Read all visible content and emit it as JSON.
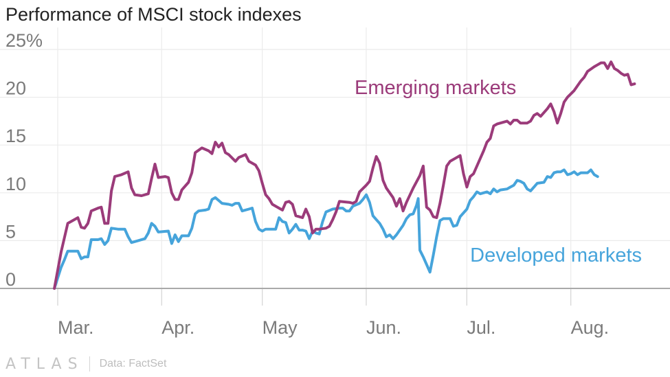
{
  "chart_data": {
    "type": "line",
    "title": "Performance of MSCI stock indexes",
    "xlabel": "",
    "ylabel": "",
    "ylim": [
      0,
      25
    ],
    "yticks": [
      0,
      5,
      10,
      15,
      20,
      25
    ],
    "ytick_labels": [
      "0",
      "5",
      "10",
      "15",
      "20",
      "25%"
    ],
    "xlim": [
      0,
      178
    ],
    "xticks": [
      {
        "label": "Mar.",
        "x": 0
      },
      {
        "label": "Apr.",
        "x": 31
      },
      {
        "label": "May",
        "x": 61
      },
      {
        "label": "Jun.",
        "x": 92
      },
      {
        "label": "Jul.",
        "x": 122
      },
      {
        "label": "Aug.",
        "x": 153
      }
    ],
    "grid": true,
    "series": [
      {
        "name": "Emerging markets",
        "color": "#9b3b7a",
        "points": [
          [
            -1,
            0
          ],
          [
            1,
            3.8
          ],
          [
            3,
            6.8
          ],
          [
            5,
            7.2
          ],
          [
            6,
            7.4
          ],
          [
            7,
            6.4
          ],
          [
            8,
            6.3
          ],
          [
            9,
            6.8
          ],
          [
            10,
            8.1
          ],
          [
            12,
            8.4
          ],
          [
            13,
            8.5
          ],
          [
            14,
            6.8
          ],
          [
            15,
            6.8
          ],
          [
            16,
            10.2
          ],
          [
            17,
            11.7
          ],
          [
            19,
            11.9
          ],
          [
            21,
            12.2
          ],
          [
            22,
            10.5
          ],
          [
            23,
            9.8
          ],
          [
            25,
            9.7
          ],
          [
            27,
            9.9
          ],
          [
            28,
            11.5
          ],
          [
            29,
            13.0
          ],
          [
            30,
            11.6
          ],
          [
            32,
            11.7
          ],
          [
            33,
            11.6
          ],
          [
            34,
            10.0
          ],
          [
            35,
            9.3
          ],
          [
            36,
            9.3
          ],
          [
            37,
            10.3
          ],
          [
            39,
            11.1
          ],
          [
            40,
            12.1
          ],
          [
            41,
            14.2
          ],
          [
            43,
            14.7
          ],
          [
            45,
            14.4
          ],
          [
            46,
            14.1
          ],
          [
            47,
            15.3
          ],
          [
            48,
            14.8
          ],
          [
            49,
            15.2
          ],
          [
            50,
            14.2
          ],
          [
            51,
            14.0
          ],
          [
            53,
            13.3
          ],
          [
            54,
            13.7
          ],
          [
            56,
            14.0
          ],
          [
            57,
            13.3
          ],
          [
            59,
            12.9
          ],
          [
            60,
            12.3
          ],
          [
            61,
            11.0
          ],
          [
            62,
            9.8
          ],
          [
            63,
            9.4
          ],
          [
            64,
            8.8
          ],
          [
            66,
            8.4
          ],
          [
            67,
            8.2
          ],
          [
            68,
            9.0
          ],
          [
            69,
            9.1
          ],
          [
            70,
            8.8
          ],
          [
            71,
            7.6
          ],
          [
            72,
            7.5
          ],
          [
            73,
            7.4
          ],
          [
            74,
            8.3
          ],
          [
            75,
            7.5
          ],
          [
            76,
            5.8
          ],
          [
            77,
            6.2
          ],
          [
            78,
            6.2
          ],
          [
            80,
            6.3
          ],
          [
            81,
            6.5
          ],
          [
            82,
            7.2
          ],
          [
            83,
            8.0
          ],
          [
            84,
            9.1
          ],
          [
            87,
            9.0
          ],
          [
            88,
            8.9
          ],
          [
            89,
            9.1
          ],
          [
            90,
            10.1
          ],
          [
            92,
            10.8
          ],
          [
            93,
            11.2
          ],
          [
            94,
            12.6
          ],
          [
            95,
            13.8
          ],
          [
            96,
            13.1
          ],
          [
            97,
            11.3
          ],
          [
            98,
            10.5
          ],
          [
            100,
            9.5
          ],
          [
            101,
            8.6
          ],
          [
            102,
            9.4
          ],
          [
            103,
            8.1
          ],
          [
            104,
            9.0
          ],
          [
            106,
            10.5
          ],
          [
            108,
            11.8
          ],
          [
            109,
            12.8
          ],
          [
            110,
            8.5
          ],
          [
            111,
            8.2
          ],
          [
            112,
            7.5
          ],
          [
            113,
            7.4
          ],
          [
            114,
            8.9
          ],
          [
            115,
            10.8
          ],
          [
            116,
            12.8
          ],
          [
            117,
            13.3
          ],
          [
            119,
            13.7
          ],
          [
            120,
            13.9
          ],
          [
            121,
            12.0
          ],
          [
            122,
            10.6
          ],
          [
            123,
            11.7
          ],
          [
            124,
            12.0
          ],
          [
            127,
            14.4
          ],
          [
            128,
            15.3
          ],
          [
            129,
            15.7
          ],
          [
            130,
            17.0
          ],
          [
            131,
            17.2
          ],
          [
            132,
            17.3
          ],
          [
            134,
            17.5
          ],
          [
            135,
            17.2
          ],
          [
            136,
            17.6
          ],
          [
            137,
            17.6
          ],
          [
            138,
            17.3
          ],
          [
            140,
            17.3
          ],
          [
            141,
            17.5
          ],
          [
            142,
            18.1
          ],
          [
            143,
            18.3
          ],
          [
            144,
            18.0
          ],
          [
            146,
            18.8
          ],
          [
            147,
            19.3
          ],
          [
            148,
            18.5
          ],
          [
            149,
            17.3
          ],
          [
            150,
            18.3
          ],
          [
            151,
            19.5
          ],
          [
            152,
            20.0
          ],
          [
            154,
            20.7
          ],
          [
            155,
            21.2
          ],
          [
            156,
            21.7
          ],
          [
            157,
            22.1
          ],
          [
            158,
            22.7
          ],
          [
            160,
            23.2
          ],
          [
            161,
            23.4
          ],
          [
            162,
            23.6
          ],
          [
            163,
            23.6
          ],
          [
            164,
            23.0
          ],
          [
            165,
            23.7
          ],
          [
            166,
            23.0
          ],
          [
            167,
            22.8
          ],
          [
            168,
            22.5
          ],
          [
            169,
            22.3
          ],
          [
            170,
            22.4
          ],
          [
            171,
            21.3
          ],
          [
            172,
            21.4
          ]
        ]
      },
      {
        "name": "Developed markets",
        "color": "#46a4db",
        "points": [
          [
            -1,
            0
          ],
          [
            1,
            2.2
          ],
          [
            2,
            3.0
          ],
          [
            3,
            3.9
          ],
          [
            5,
            3.9
          ],
          [
            6,
            3.9
          ],
          [
            7,
            3.1
          ],
          [
            8,
            3.3
          ],
          [
            9,
            3.3
          ],
          [
            10,
            5.1
          ],
          [
            12,
            5.1
          ],
          [
            13,
            5.2
          ],
          [
            14,
            4.6
          ],
          [
            15,
            5.0
          ],
          [
            16,
            6.3
          ],
          [
            18,
            6.2
          ],
          [
            20,
            6.2
          ],
          [
            21,
            5.4
          ],
          [
            22,
            4.8
          ],
          [
            24,
            5.0
          ],
          [
            26,
            5.2
          ],
          [
            27,
            5.8
          ],
          [
            28,
            6.8
          ],
          [
            29,
            6.5
          ],
          [
            30,
            5.9
          ],
          [
            33,
            6.0
          ],
          [
            34,
            4.7
          ],
          [
            35,
            5.6
          ],
          [
            36,
            4.9
          ],
          [
            37,
            5.5
          ],
          [
            39,
            5.5
          ],
          [
            40,
            6.3
          ],
          [
            41,
            7.8
          ],
          [
            42,
            8.1
          ],
          [
            44,
            8.2
          ],
          [
            45,
            8.3
          ],
          [
            46,
            9.3
          ],
          [
            47,
            9.5
          ],
          [
            48,
            9.2
          ],
          [
            49,
            8.9
          ],
          [
            51,
            8.8
          ],
          [
            52,
            8.7
          ],
          [
            53,
            8.9
          ],
          [
            54,
            8.9
          ],
          [
            55,
            8.1
          ],
          [
            57,
            8.3
          ],
          [
            58,
            8.4
          ],
          [
            59,
            7.0
          ],
          [
            60,
            6.2
          ],
          [
            61,
            6.0
          ],
          [
            62,
            6.2
          ],
          [
            64,
            6.2
          ],
          [
            65,
            6.2
          ],
          [
            66,
            7.4
          ],
          [
            67,
            7.0
          ],
          [
            68,
            6.9
          ],
          [
            69,
            5.8
          ],
          [
            70,
            6.2
          ],
          [
            71,
            6.7
          ],
          [
            72,
            6.1
          ],
          [
            73,
            6.1
          ],
          [
            74,
            6.0
          ],
          [
            75,
            5.2
          ],
          [
            76,
            6.0
          ],
          [
            77,
            5.8
          ],
          [
            78,
            5.7
          ],
          [
            79,
            7.0
          ],
          [
            80,
            8.0
          ],
          [
            82,
            8.3
          ],
          [
            84,
            8.4
          ],
          [
            85,
            8.4
          ],
          [
            86,
            8.1
          ],
          [
            87,
            8.1
          ],
          [
            88,
            8.6
          ],
          [
            90,
            8.9
          ],
          [
            91,
            9.3
          ],
          [
            92,
            9.8
          ],
          [
            93,
            9.0
          ],
          [
            94,
            7.6
          ],
          [
            95,
            7.2
          ],
          [
            96,
            6.8
          ],
          [
            97,
            6.2
          ],
          [
            98,
            5.4
          ],
          [
            99,
            5.6
          ],
          [
            100,
            5.2
          ],
          [
            101,
            5.6
          ],
          [
            103,
            6.6
          ],
          [
            104,
            7.3
          ],
          [
            105,
            7.7
          ],
          [
            106,
            7.8
          ],
          [
            107,
            8.7
          ],
          [
            107.5,
            9.4
          ],
          [
            108,
            4.0
          ],
          [
            109,
            3.3
          ],
          [
            110,
            2.5
          ],
          [
            111,
            1.7
          ],
          [
            112,
            3.5
          ],
          [
            113,
            5.4
          ],
          [
            114,
            7.1
          ],
          [
            115,
            7.3
          ],
          [
            117,
            7.3
          ],
          [
            118,
            6.5
          ],
          [
            119,
            6.6
          ],
          [
            120,
            7.5
          ],
          [
            122,
            8.3
          ],
          [
            123,
            9.2
          ],
          [
            124,
            9.6
          ],
          [
            125,
            10.1
          ],
          [
            126,
            9.9
          ],
          [
            128,
            10.1
          ],
          [
            129,
            9.9
          ],
          [
            130,
            10.4
          ],
          [
            131,
            10.1
          ],
          [
            132,
            10.3
          ],
          [
            134,
            10.4
          ],
          [
            135,
            10.6
          ],
          [
            136,
            10.8
          ],
          [
            137,
            11.3
          ],
          [
            138,
            11.2
          ],
          [
            139,
            11.0
          ],
          [
            140,
            10.4
          ],
          [
            141,
            10.2
          ],
          [
            142,
            10.6
          ],
          [
            143,
            11.0
          ],
          [
            145,
            11.1
          ],
          [
            146,
            11.7
          ],
          [
            147,
            11.6
          ],
          [
            148,
            12.1
          ],
          [
            149,
            12.2
          ],
          [
            150,
            12.2
          ],
          [
            151,
            12.4
          ],
          [
            152,
            11.9
          ],
          [
            153,
            12.0
          ],
          [
            154,
            12.2
          ],
          [
            155,
            11.9
          ],
          [
            156,
            12.1
          ],
          [
            158,
            12.1
          ],
          [
            159,
            12.4
          ],
          [
            160,
            11.9
          ],
          [
            161,
            11.7
          ]
        ]
      }
    ],
    "annotations": [
      {
        "text": "Emerging markets",
        "series": 0
      },
      {
        "text": "Developed markets",
        "series": 1
      }
    ]
  },
  "footer": {
    "brand": "ATLAS",
    "source": "Data: FactSet"
  }
}
